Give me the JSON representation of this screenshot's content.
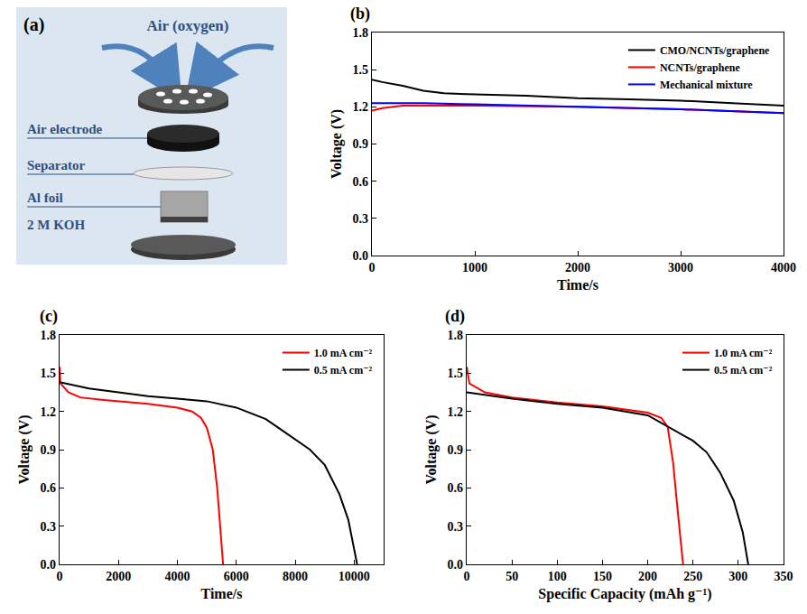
{
  "diagram": {
    "label": "(a)",
    "air": "Air (oxygen)",
    "components": [
      "Air electrode",
      "Separator",
      "Al foil",
      "2 M KOH"
    ]
  },
  "chart_data": [
    {
      "type": "line",
      "label": "(b)",
      "x_label": "Time/s",
      "y_label": "Voltage (V)",
      "xlim": [
        0,
        4000
      ],
      "xticks": [
        0,
        1000,
        2000,
        3000,
        4000
      ],
      "ylim": [
        0,
        1.8
      ],
      "yticks": [
        {
          "value": 0,
          "label": "0.0"
        },
        0.3,
        0.6,
        0.9,
        1.2,
        1.5,
        1.8
      ],
      "grid": false,
      "legend": "top right",
      "series": [
        {
          "name": "CMO/NCNTs/graphene",
          "color": "#000000",
          "x": [
            0,
            100,
            300,
            500,
            700,
            1000,
            1500,
            2000,
            2500,
            3000,
            3500,
            4000
          ],
          "values": [
            1.42,
            1.4,
            1.37,
            1.33,
            1.31,
            1.3,
            1.29,
            1.27,
            1.26,
            1.25,
            1.23,
            1.21
          ]
        },
        {
          "name": "NCNTs/graphene",
          "color": "#ff0000",
          "x": [
            0,
            100,
            300,
            500,
            1000,
            2000,
            3000,
            4000
          ],
          "values": [
            1.17,
            1.19,
            1.21,
            1.21,
            1.21,
            1.2,
            1.18,
            1.15
          ]
        },
        {
          "name": "Mechanical mixture",
          "color": "#0000ff",
          "x": [
            0,
            200,
            500,
            1000,
            2000,
            3000,
            4000
          ],
          "values": [
            1.23,
            1.23,
            1.23,
            1.22,
            1.2,
            1.18,
            1.15
          ]
        }
      ]
    },
    {
      "type": "line",
      "label": "(c)",
      "x_label": "Time/s",
      "y_label": "Voltage (V)",
      "xlim": [
        0,
        11000
      ],
      "xticks": [
        0,
        2000,
        4000,
        6000,
        8000,
        10000
      ],
      "ylim": [
        0,
        1.8
      ],
      "yticks": [
        {
          "value": 0,
          "label": "0.0"
        },
        0.3,
        0.6,
        0.9,
        1.2,
        1.5,
        1.8
      ],
      "grid": false,
      "legend": "top right",
      "series": [
        {
          "name": "1.0 mA cm⁻²",
          "color": "#ff0000",
          "x": [
            0,
            30,
            300,
            700,
            1500,
            3000,
            4000,
            4500,
            4800,
            5000,
            5200,
            5350,
            5450,
            5550
          ],
          "values": [
            1.55,
            1.42,
            1.35,
            1.31,
            1.29,
            1.26,
            1.23,
            1.2,
            1.15,
            1.07,
            0.9,
            0.6,
            0.3,
            0
          ]
        },
        {
          "name": "0.5 mA cm⁻²",
          "color": "#000000",
          "x": [
            0,
            1000,
            2000,
            3000,
            4000,
            5000,
            6000,
            7000,
            7500,
            8000,
            8500,
            9000,
            9500,
            9800,
            10000,
            10100
          ],
          "values": [
            1.43,
            1.38,
            1.35,
            1.32,
            1.3,
            1.28,
            1.23,
            1.14,
            1.06,
            0.98,
            0.9,
            0.78,
            0.55,
            0.35,
            0.12,
            0
          ]
        }
      ]
    },
    {
      "type": "line",
      "label": "(d)",
      "x_label": "Specific Capacity (mAh g⁻¹)",
      "y_label": "Voltage (V)",
      "xlim": [
        0,
        350
      ],
      "xticks": [
        0,
        50,
        100,
        150,
        200,
        250,
        300,
        350
      ],
      "ylim": [
        0,
        1.8
      ],
      "yticks": [
        {
          "value": 0,
          "label": "0.0"
        },
        0.3,
        0.6,
        0.9,
        1.2,
        1.5,
        1.8
      ],
      "grid": false,
      "legend": "top right",
      "series": [
        {
          "name": "1.0 mA cm⁻²",
          "color": "#ff0000",
          "x": [
            0,
            3,
            20,
            50,
            100,
            150,
            200,
            215,
            222,
            228,
            232,
            236,
            239
          ],
          "values": [
            1.55,
            1.42,
            1.35,
            1.31,
            1.27,
            1.24,
            1.19,
            1.15,
            1.08,
            0.8,
            0.5,
            0.2,
            0
          ]
        },
        {
          "name": "0.5 mA cm⁻²",
          "color": "#000000",
          "x": [
            0,
            50,
            100,
            150,
            200,
            225,
            250,
            265,
            280,
            295,
            305,
            311
          ],
          "values": [
            1.35,
            1.3,
            1.26,
            1.23,
            1.17,
            1.07,
            0.97,
            0.88,
            0.72,
            0.5,
            0.25,
            0
          ]
        }
      ]
    }
  ]
}
